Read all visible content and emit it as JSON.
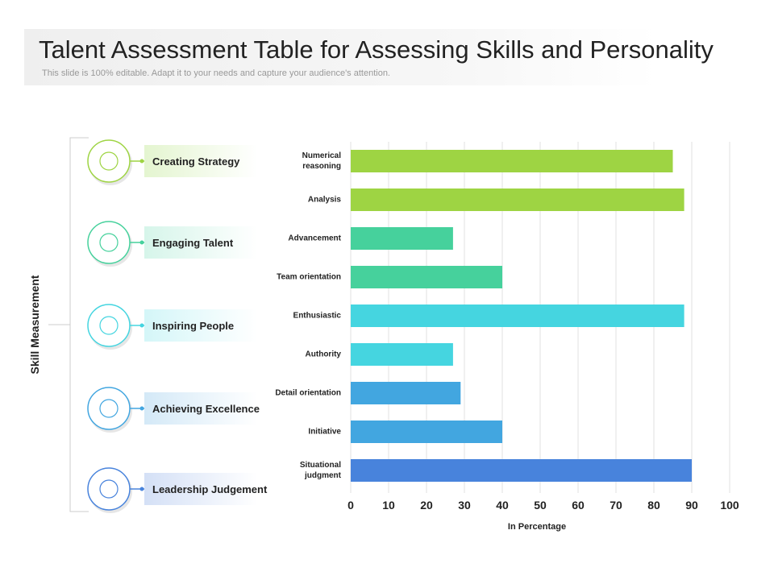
{
  "header": {
    "title": "Talent Assessment Table for Assessing Skills and Personality",
    "subtitle": "This slide is 100% editable. Adapt it to your needs and capture your audience's attention."
  },
  "panel": {
    "axis_title": "Skill Measurement",
    "items": [
      "Creating Strategy",
      "Engaging Talent",
      "Inspiring People",
      "Achieving Excellence",
      "Leadership Judgement"
    ]
  },
  "chart_data": {
    "type": "hbar",
    "xlabel": "In Percentage",
    "categories": [
      "Numerical reasoning",
      "Analysis",
      "Advancement",
      "Team orientation",
      "Enthusiastic",
      "Authority",
      "Detail orientation",
      "Initiative",
      "Situational judgment"
    ],
    "values": [
      85,
      88,
      27,
      40,
      88,
      27,
      29,
      40,
      90
    ],
    "colors": [
      "#9ed443",
      "#9ed443",
      "#46d19c",
      "#46d19c",
      "#45d5e0",
      "#45d5e0",
      "#42a6e0",
      "#42a6e0",
      "#4883dc"
    ],
    "xlim": [
      0,
      100
    ],
    "xticks": [
      0,
      10,
      20,
      30,
      40,
      50,
      60,
      70,
      80,
      90,
      100
    ],
    "grid": true
  }
}
